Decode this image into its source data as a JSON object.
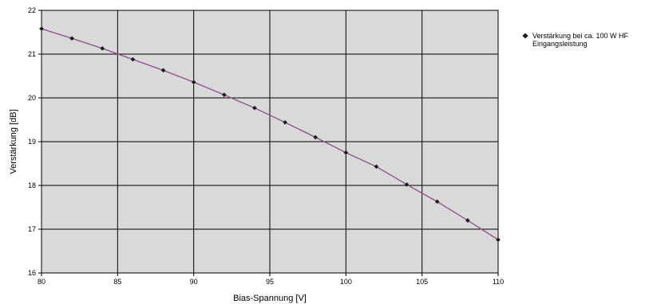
{
  "chart_data": {
    "type": "line",
    "title": "",
    "xlabel": "Bias-Spannung [V]",
    "ylabel": "Verstärkung [dB]",
    "xlim": [
      80,
      110
    ],
    "ylim": [
      16,
      22
    ],
    "x_ticks": [
      "80",
      "85",
      "90",
      "95",
      "100",
      "105",
      "110"
    ],
    "y_ticks": [
      "16",
      "17",
      "18",
      "19",
      "20",
      "21",
      "22"
    ],
    "grid": true,
    "legend_position": "right",
    "plot_background": "#d9d9d9",
    "series": [
      {
        "name": "Verstärkung bei ca. 100 W HF Eingangsleistung",
        "legend_lines": [
          "Verstärkung bei ca. 100 W HF",
          "Eingangsleistung"
        ],
        "color": "#8b4a8b",
        "marker_color": "#1a1a1a",
        "x": [
          80,
          82,
          84,
          86,
          88,
          90,
          92,
          94,
          96,
          98,
          100,
          102,
          104,
          106,
          108,
          110
        ],
        "y": [
          21.58,
          21.36,
          21.13,
          20.88,
          20.63,
          20.36,
          20.07,
          19.77,
          19.44,
          19.1,
          18.75,
          18.43,
          18.02,
          17.63,
          17.2,
          16.76
        ]
      }
    ]
  }
}
